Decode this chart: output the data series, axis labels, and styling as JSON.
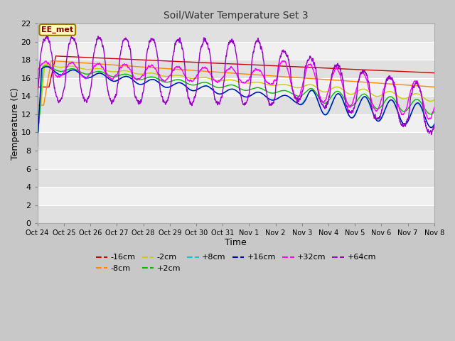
{
  "title": "Soil/Water Temperature Set 3",
  "xlabel": "Time",
  "ylabel": "Temperature (C)",
  "annotation": "EE_met",
  "ylim": [
    0,
    22
  ],
  "yticks": [
    0,
    2,
    4,
    6,
    8,
    10,
    12,
    14,
    16,
    18,
    20,
    22
  ],
  "xtick_labels": [
    "Oct 24",
    "Oct 25",
    "Oct 26",
    "Oct 27",
    "Oct 28",
    "Oct 29",
    "Oct 30",
    "Oct 31",
    "Nov 1",
    "Nov 2",
    "Nov 3",
    "Nov 4",
    "Nov 5",
    "Nov 6",
    "Nov 7",
    "Nov 8"
  ],
  "n_days": 16,
  "series_colors": {
    "-16cm": "#cc0000",
    "-8cm": "#ff8800",
    "-2cm": "#cccc00",
    "+2cm": "#00bb00",
    "+8cm": "#00cccc",
    "+16cm": "#0000bb",
    "+32cm": "#ff00ff",
    "+64cm": "#9900cc"
  },
  "bg_outer": "#c8c8c8",
  "bg_inner_light": "#f0f0f0",
  "bg_inner_dark": "#e0e0e0",
  "grid_color": "#ffffff",
  "legend_order": [
    "-16cm",
    "-8cm",
    "-2cm",
    "+2cm",
    "+8cm",
    "+16cm",
    "+32cm",
    "+64cm"
  ]
}
